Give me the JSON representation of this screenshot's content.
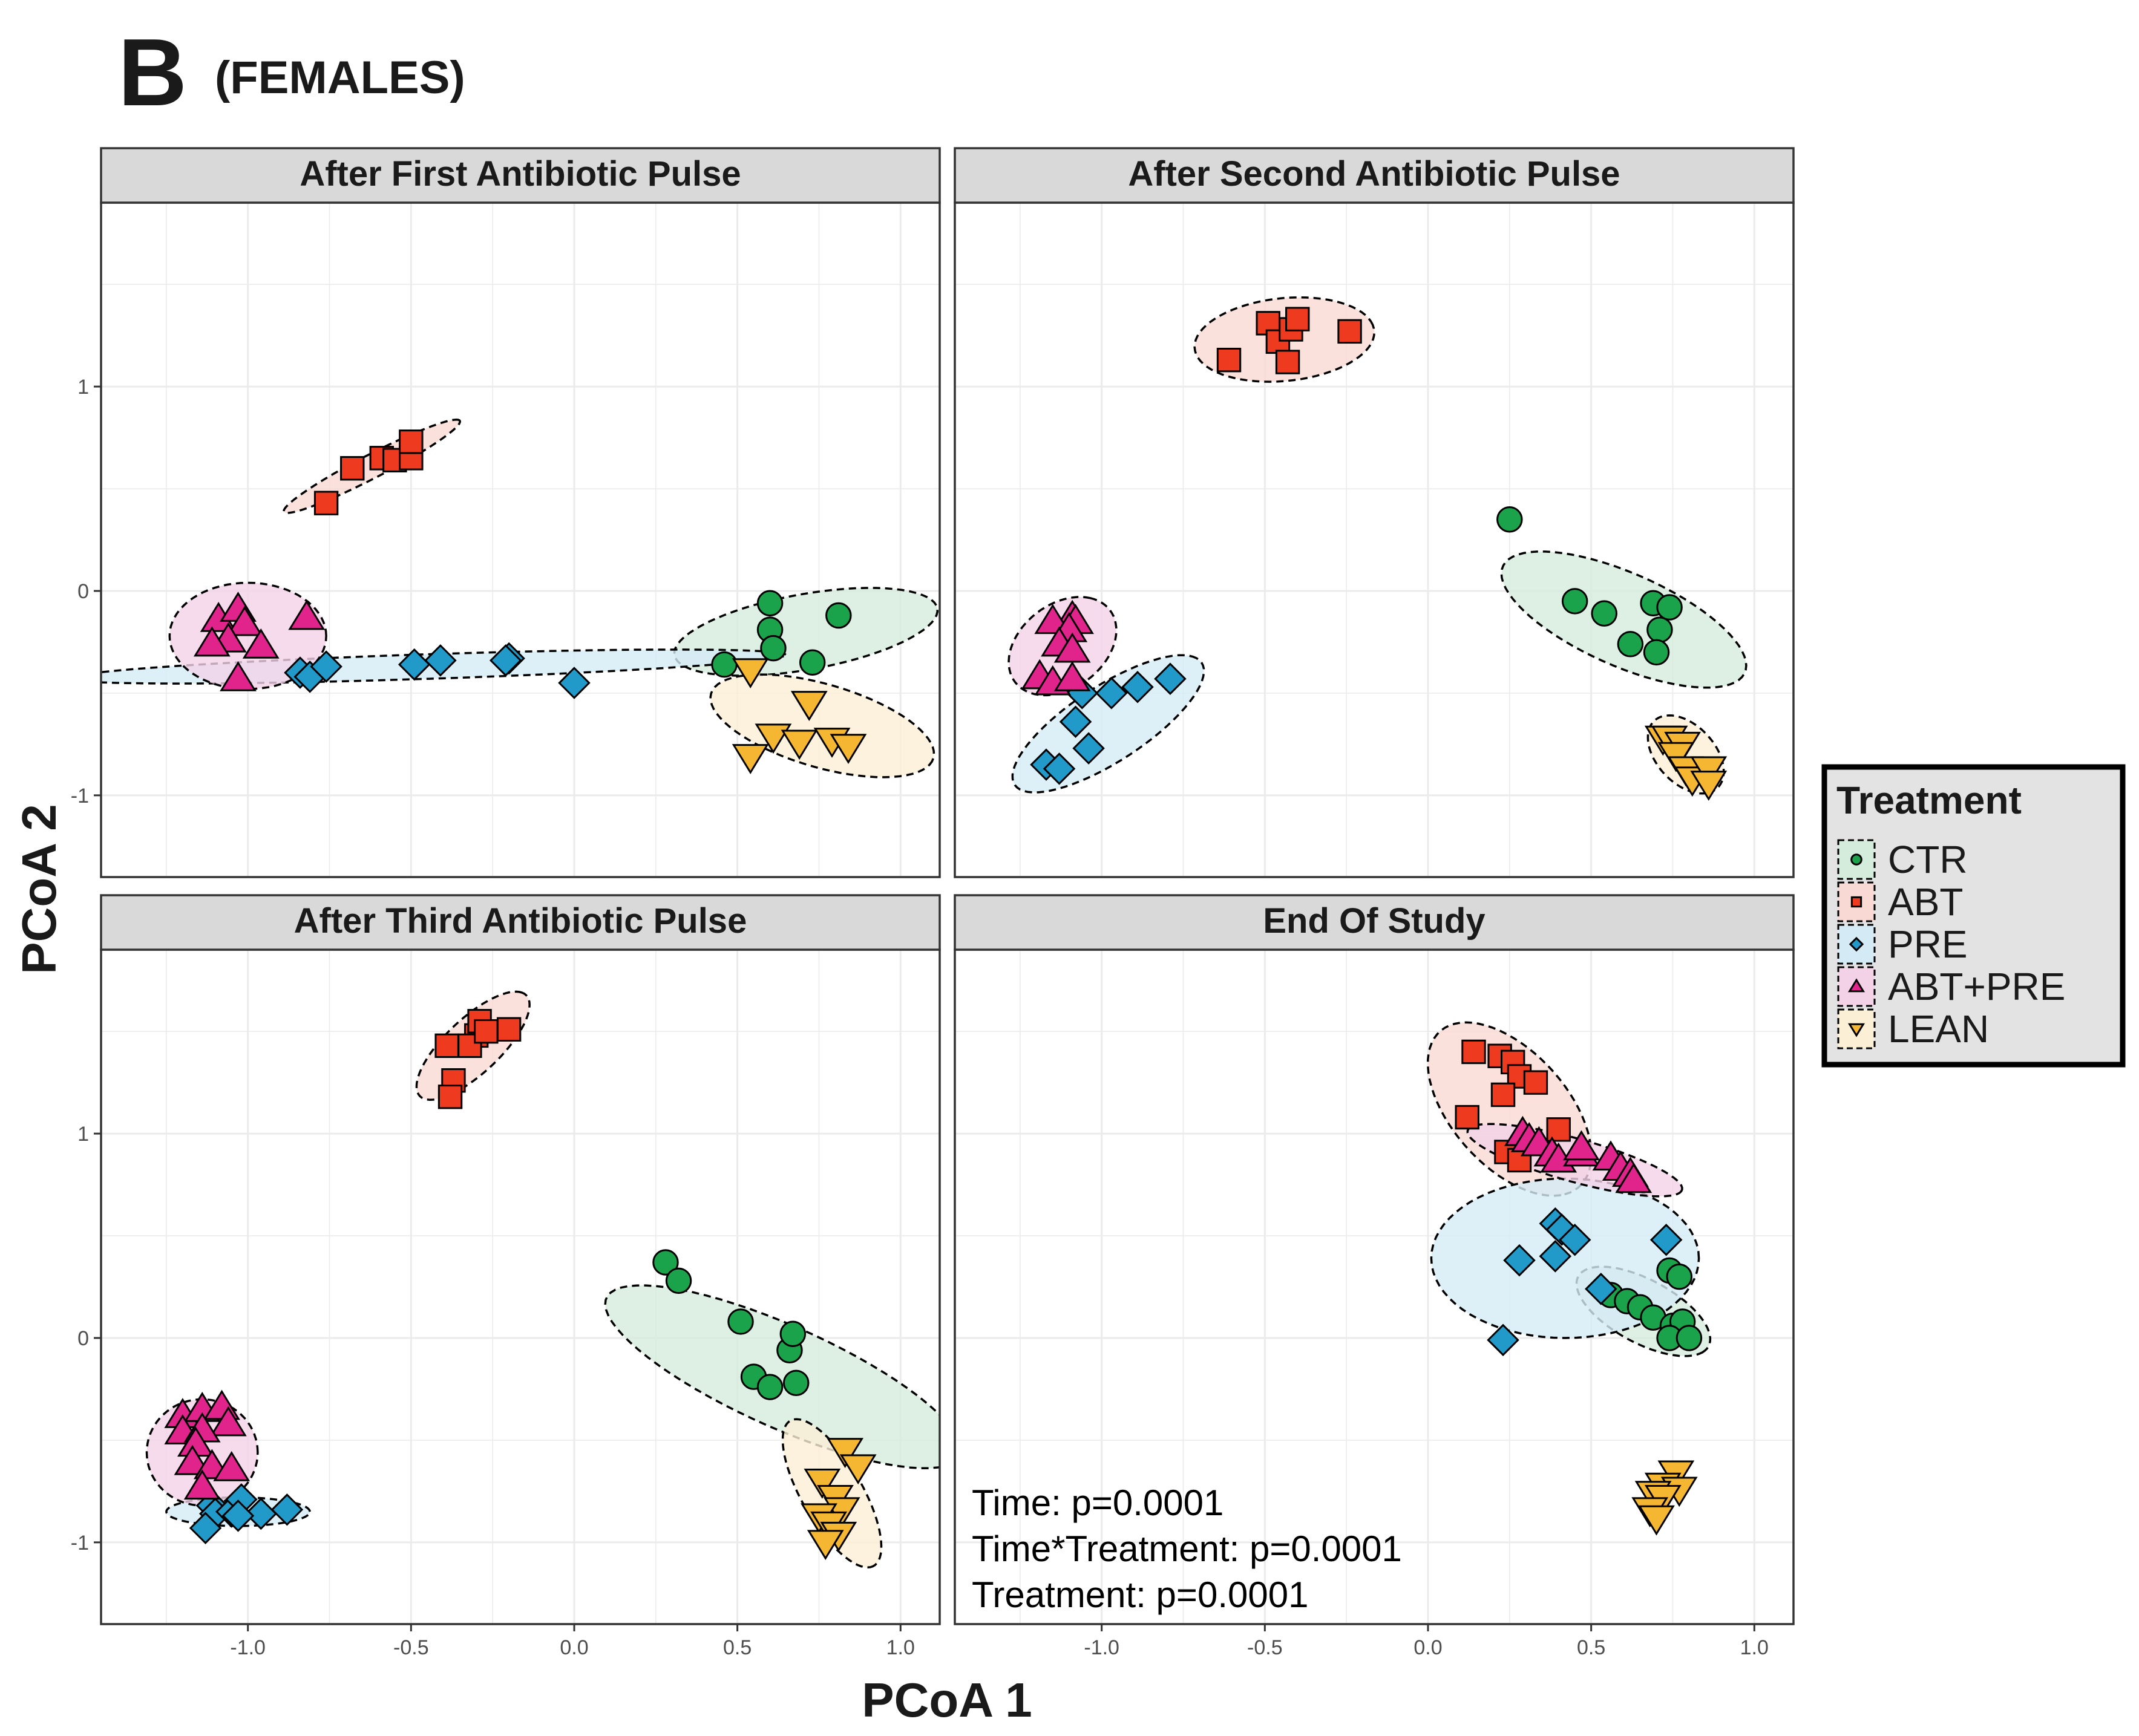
{
  "figure": {
    "panel_letter": "B",
    "panel_subtitle": "(FEMALES)",
    "xlabel": "PCoA 1",
    "ylabel": "PCoA 2"
  },
  "legend": {
    "title": "Treatment",
    "items": [
      {
        "label": "CTR",
        "shape": "circle",
        "fill": "#1aa34a",
        "ellipse": "#d4ecdc"
      },
      {
        "label": "ABT",
        "shape": "square",
        "fill": "#ee3a1f",
        "ellipse": "#f9d9d3"
      },
      {
        "label": "PRE",
        "shape": "diamond",
        "fill": "#2199c9",
        "ellipse": "#d4ebf5"
      },
      {
        "label": "ABT+PRE",
        "shape": "triangle",
        "fill": "#e0248c",
        "ellipse": "#f3d2e7"
      },
      {
        "label": "LEAN",
        "shape": "triangle-down",
        "fill": "#f5b631",
        "ellipse": "#fbefd6"
      }
    ]
  },
  "chart_data": {
    "type": "scatter",
    "xlim": [
      -1.45,
      1.12
    ],
    "ylim": [
      -1.4,
      1.9
    ],
    "x_ticks": [
      -1.0,
      -0.5,
      0.0,
      0.5,
      1.0
    ],
    "x_tick_labels": [
      "-1.0",
      "-0.5",
      "0.0",
      "0.5",
      "1.0"
    ],
    "y_ticks": [
      -1,
      0,
      1
    ],
    "y_tick_labels": [
      "-1",
      "0",
      "1"
    ],
    "grid": true,
    "legend_position": "right",
    "facets": [
      {
        "title": "After First Antibiotic Pulse",
        "series": [
          {
            "name": "CTR",
            "points": [
              [
                0.6,
                -0.06
              ],
              [
                0.6,
                -0.19
              ],
              [
                0.61,
                -0.28
              ],
              [
                0.81,
                -0.12
              ],
              [
                0.46,
                -0.36
              ],
              [
                0.73,
                -0.35
              ]
            ],
            "ellipse": {
              "cx": 0.71,
              "cy": -0.2,
              "rx": 0.42,
              "ry": 0.18,
              "angle": 18
            }
          },
          {
            "name": "ABT",
            "points": [
              [
                -0.76,
                0.43
              ],
              [
                -0.68,
                0.6
              ],
              [
                -0.59,
                0.65
              ],
              [
                -0.55,
                0.64
              ],
              [
                -0.5,
                0.65
              ],
              [
                -0.5,
                0.73
              ]
            ],
            "ellipse": {
              "cx": -0.62,
              "cy": 0.61,
              "rx": 0.35,
              "ry": 0.05,
              "angle": 40
            }
          },
          {
            "name": "PRE",
            "points": [
              [
                -0.84,
                -0.4
              ],
              [
                -0.81,
                -0.42
              ],
              [
                -0.76,
                -0.37
              ],
              [
                -0.49,
                -0.36
              ],
              [
                -0.41,
                -0.34
              ],
              [
                -0.2,
                -0.33
              ],
              [
                -0.21,
                -0.34
              ],
              [
                0.0,
                -0.45
              ]
            ],
            "ellipse": {
              "cx": -0.45,
              "cy": -0.37,
              "rx": 1.1,
              "ry": 0.06,
              "angle": 3
            }
          },
          {
            "name": "ABT+PRE",
            "points": [
              [
                -1.09,
                -0.14
              ],
              [
                -1.03,
                -0.09
              ],
              [
                -1.01,
                -0.16
              ],
              [
                -1.06,
                -0.24
              ],
              [
                -1.11,
                -0.26
              ],
              [
                -0.96,
                -0.27
              ],
              [
                -0.82,
                -0.13
              ],
              [
                -1.03,
                -0.43
              ]
            ],
            "ellipse": {
              "cx": -1.0,
              "cy": -0.22,
              "rx": 0.24,
              "ry": 0.26,
              "angle": 0
            }
          },
          {
            "name": "LEAN",
            "points": [
              [
                0.54,
                -0.39
              ],
              [
                0.72,
                -0.55
              ],
              [
                0.61,
                -0.71
              ],
              [
                0.69,
                -0.74
              ],
              [
                0.79,
                -0.73
              ],
              [
                0.84,
                -0.76
              ],
              [
                0.54,
                -0.81
              ]
            ],
            "ellipse": {
              "cx": 0.76,
              "cy": -0.66,
              "rx": 0.38,
              "ry": 0.19,
              "angle": -30
            }
          }
        ]
      },
      {
        "title": "After Second Antibiotic Pulse",
        "series": [
          {
            "name": "CTR",
            "points": [
              [
                0.25,
                0.35
              ],
              [
                0.45,
                -0.05
              ],
              [
                0.54,
                -0.11
              ],
              [
                0.62,
                -0.26
              ],
              [
                0.69,
                -0.06
              ],
              [
                0.74,
                -0.08
              ],
              [
                0.71,
                -0.19
              ],
              [
                0.7,
                -0.3
              ]
            ],
            "ellipse": {
              "cx": 0.6,
              "cy": -0.14,
              "rx": 0.46,
              "ry": 0.2,
              "angle": -40
            }
          },
          {
            "name": "ABT",
            "points": [
              [
                -0.49,
                1.31
              ],
              [
                -0.46,
                1.22
              ],
              [
                -0.42,
                1.28
              ],
              [
                -0.4,
                1.33
              ],
              [
                -0.43,
                1.12
              ],
              [
                -0.61,
                1.13
              ],
              [
                -0.24,
                1.27
              ]
            ],
            "ellipse": {
              "cx": -0.44,
              "cy": 1.23,
              "rx": 0.28,
              "ry": 0.2,
              "angle": 15
            }
          },
          {
            "name": "PRE",
            "points": [
              [
                -1.06,
                -0.5
              ],
              [
                -0.97,
                -0.5
              ],
              [
                -0.89,
                -0.47
              ],
              [
                -0.79,
                -0.43
              ],
              [
                -1.08,
                -0.64
              ],
              [
                -1.04,
                -0.77
              ],
              [
                -1.17,
                -0.85
              ],
              [
                -1.13,
                -0.87
              ]
            ],
            "ellipse": {
              "cx": -0.98,
              "cy": -0.65,
              "rx": 0.42,
              "ry": 0.15,
              "angle": 50
            }
          },
          {
            "name": "ABT+PRE",
            "points": [
              [
                -1.09,
                -0.13
              ],
              [
                -1.08,
                -0.15
              ],
              [
                -1.15,
                -0.15
              ],
              [
                -1.1,
                -0.19
              ],
              [
                -1.13,
                -0.26
              ],
              [
                -1.09,
                -0.29
              ],
              [
                -1.19,
                -0.42
              ],
              [
                -1.15,
                -0.45
              ],
              [
                -1.09,
                -0.43
              ]
            ],
            "ellipse": {
              "cx": -1.12,
              "cy": -0.27,
              "rx": 0.25,
              "ry": 0.15,
              "angle": 70
            }
          },
          {
            "name": "LEAN",
            "points": [
              [
                0.72,
                -0.72
              ],
              [
                0.74,
                -0.72
              ],
              [
                0.78,
                -0.75
              ],
              [
                0.76,
                -0.8
              ],
              [
                0.79,
                -0.87
              ],
              [
                0.81,
                -0.92
              ],
              [
                0.86,
                -0.87
              ],
              [
                0.86,
                -0.94
              ]
            ],
            "ellipse": {
              "cx": 0.79,
              "cy": -0.8,
              "rx": 0.2,
              "ry": 0.1,
              "angle": -70
            }
          }
        ]
      },
      {
        "title": "After Third Antibiotic Pulse",
        "series": [
          {
            "name": "CTR",
            "points": [
              [
                0.28,
                0.37
              ],
              [
                0.32,
                0.28
              ],
              [
                0.51,
                0.08
              ],
              [
                0.66,
                -0.06
              ],
              [
                0.67,
                0.02
              ],
              [
                0.55,
                -0.19
              ],
              [
                0.6,
                -0.24
              ],
              [
                0.68,
                -0.22
              ]
            ],
            "ellipse": {
              "cx": 0.64,
              "cy": -0.19,
              "rx": 0.67,
              "ry": 0.22,
              "angle": -38
            }
          },
          {
            "name": "ABT",
            "points": [
              [
                -0.39,
                1.43
              ],
              [
                -0.37,
                1.26
              ],
              [
                -0.3,
                1.48
              ],
              [
                -0.32,
                1.43
              ],
              [
                -0.29,
                1.55
              ],
              [
                -0.27,
                1.5
              ],
              [
                -0.2,
                1.51
              ],
              [
                -0.38,
                1.18
              ]
            ],
            "ellipse": {
              "cx": -0.31,
              "cy": 1.43,
              "rx": 0.3,
              "ry": 0.1,
              "angle": 60
            }
          },
          {
            "name": "PRE",
            "points": [
              [
                -1.11,
                -0.82
              ],
              [
                -1.1,
                -0.86
              ],
              [
                -1.05,
                -0.85
              ],
              [
                -1.02,
                -0.79
              ],
              [
                -0.96,
                -0.86
              ],
              [
                -0.88,
                -0.84
              ],
              [
                -1.03,
                -0.87
              ],
              [
                -1.13,
                -0.93
              ]
            ],
            "ellipse": {
              "cx": -1.03,
              "cy": -0.85,
              "rx": 0.22,
              "ry": 0.07,
              "angle": 0
            }
          },
          {
            "name": "ABT+PRE",
            "points": [
              [
                -1.2,
                -0.38
              ],
              [
                -1.14,
                -0.35
              ],
              [
                -1.08,
                -0.34
              ],
              [
                -1.06,
                -0.42
              ],
              [
                -1.2,
                -0.46
              ],
              [
                -1.14,
                -0.45
              ],
              [
                -1.16,
                -0.52
              ],
              [
                -1.17,
                -0.61
              ],
              [
                -1.11,
                -0.63
              ],
              [
                -1.05,
                -0.64
              ],
              [
                -1.14,
                -0.73
              ]
            ],
            "ellipse": {
              "cx": -1.14,
              "cy": -0.56,
              "rx": 0.17,
              "ry": 0.26,
              "angle": 0
            }
          },
          {
            "name": "LEAN",
            "points": [
              [
                0.83,
                -0.55
              ],
              [
                0.87,
                -0.63
              ],
              [
                0.76,
                -0.7
              ],
              [
                0.8,
                -0.78
              ],
              [
                0.82,
                -0.84
              ],
              [
                0.75,
                -0.87
              ],
              [
                0.78,
                -0.91
              ],
              [
                0.81,
                -0.96
              ],
              [
                0.77,
                -1.0
              ]
            ],
            "ellipse": {
              "cx": 0.79,
              "cy": -0.76,
              "rx": 0.38,
              "ry": 0.1,
              "angle": -72
            }
          }
        ]
      },
      {
        "title": "End Of Study",
        "series": [
          {
            "name": "CTR",
            "points": [
              [
                0.56,
                0.21
              ],
              [
                0.61,
                0.18
              ],
              [
                0.65,
                0.15
              ],
              [
                0.69,
                0.1
              ],
              [
                0.74,
                0.33
              ],
              [
                0.77,
                0.3
              ],
              [
                0.75,
                0.06
              ],
              [
                0.78,
                0.08
              ],
              [
                0.74,
                0.0
              ],
              [
                0.8,
                0.0
              ]
            ],
            "ellipse": {
              "cx": 0.66,
              "cy": 0.13,
              "rx": 0.27,
              "ry": 0.13,
              "angle": -48
            }
          },
          {
            "name": "ABT",
            "points": [
              [
                0.14,
                1.4
              ],
              [
                0.22,
                1.38
              ],
              [
                0.26,
                1.35
              ],
              [
                0.28,
                1.28
              ],
              [
                0.33,
                1.25
              ],
              [
                0.23,
                1.19
              ],
              [
                0.12,
                1.08
              ],
              [
                0.4,
                1.02
              ],
              [
                0.24,
                0.91
              ],
              [
                0.28,
                0.87
              ]
            ],
            "ellipse": {
              "cx": 0.25,
              "cy": 1.12,
              "rx": 0.45,
              "ry": 0.2,
              "angle": -68
            }
          },
          {
            "name": "PRE",
            "points": [
              [
                0.39,
                0.56
              ],
              [
                0.41,
                0.53
              ],
              [
                0.45,
                0.48
              ],
              [
                0.73,
                0.48
              ],
              [
                0.28,
                0.38
              ],
              [
                0.39,
                0.4
              ],
              [
                0.53,
                0.24
              ],
              [
                0.23,
                -0.01
              ]
            ],
            "ellipse": {
              "cx": 0.42,
              "cy": 0.39,
              "rx": 0.41,
              "ry": 0.39,
              "angle": 0
            }
          },
          {
            "name": "ABT+PRE",
            "points": [
              [
                0.29,
                1.0
              ],
              [
                0.31,
                0.97
              ],
              [
                0.34,
                0.95
              ],
              [
                0.38,
                0.9
              ],
              [
                0.4,
                0.87
              ],
              [
                0.47,
                0.9
              ],
              [
                0.47,
                0.93
              ],
              [
                0.56,
                0.88
              ],
              [
                0.59,
                0.83
              ],
              [
                0.62,
                0.8
              ],
              [
                0.63,
                0.77
              ]
            ],
            "ellipse": {
              "cx": 0.45,
              "cy": 0.87,
              "rx": 0.36,
              "ry": 0.1,
              "angle": -25
            }
          },
          {
            "name": "LEAN",
            "points": [
              [
                0.76,
                -0.66
              ],
              [
                0.72,
                -0.72
              ],
              [
                0.77,
                -0.74
              ],
              [
                0.69,
                -0.76
              ],
              [
                0.72,
                -0.78
              ],
              [
                0.68,
                -0.84
              ],
              [
                0.7,
                -0.88
              ]
            ],
            "ellipse": null
          }
        ],
        "annotations": [
          "Time: p=0.0001",
          "Time*Treatment: p=0.0001",
          "Treatment: p=0.0001"
        ]
      }
    ]
  }
}
